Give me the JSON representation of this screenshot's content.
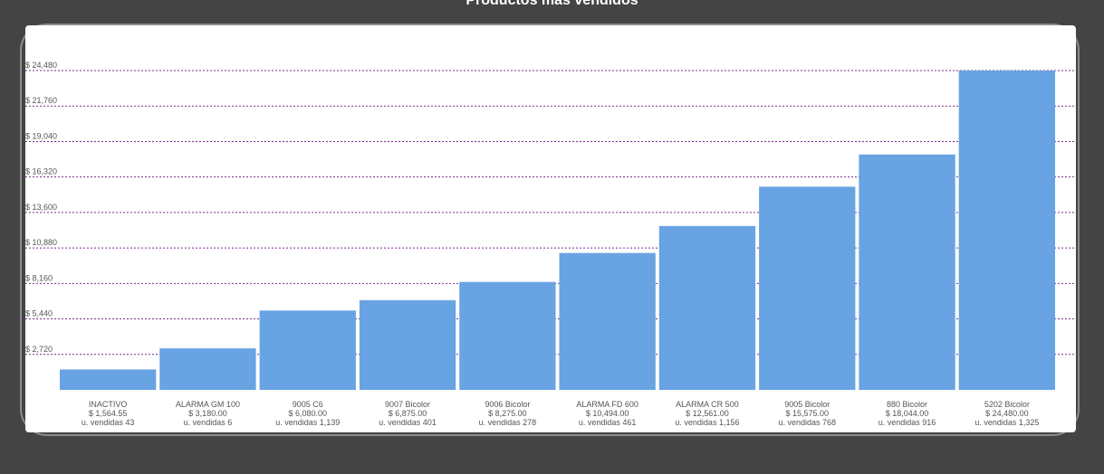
{
  "page": {
    "title": "Productos más vendidos"
  },
  "colors": {
    "background": "#444444",
    "panel": "#ffffff",
    "bar": "#68a3e3",
    "grid": "#7b2d8b",
    "text": "#555555"
  },
  "chart_data": {
    "type": "bar",
    "title": "Productos más vendidos",
    "xlabel": "",
    "ylabel": "",
    "ylim": [
      0,
      24480
    ],
    "grid": true,
    "y_ticks": [
      2720,
      5440,
      8160,
      10880,
      13600,
      16320,
      19040,
      21760,
      24480
    ],
    "y_tick_labels": [
      "$ 2,720",
      "$ 5,440",
      "$ 8,160",
      "$ 10,880",
      "$ 13,600",
      "$ 16,320",
      "$ 19,040",
      "$ 21,760",
      "$ 24,480"
    ],
    "categories": [
      "INACTIVO",
      "ALARMA GM 100",
      "9005 C6",
      "9007 Bicolor",
      "9006 Bicolor",
      "ALARMA FD 600",
      "ALARMA CR 500",
      "9005 Bicolor",
      "880 Bicolor",
      "5202 Bicolor"
    ],
    "values": [
      1564.55,
      3180.0,
      6080.0,
      6875.0,
      8275.0,
      10494.0,
      12561.0,
      15575.0,
      18044.0,
      24480.0
    ],
    "value_labels": [
      "$ 1,564.55",
      "$ 3,180.00",
      "$ 6,080.00",
      "$ 6,875.00",
      "$ 8,275.00",
      "$ 10,494.00",
      "$ 12,561.00",
      "$ 15,575.00",
      "$ 18,044.00",
      "$ 24,480.00"
    ],
    "units_sold": [
      43,
      6,
      1139,
      401,
      278,
      461,
      1156,
      768,
      916,
      1325
    ],
    "units_labels": [
      "u. vendidas 43",
      "u. vendidas 6",
      "u. vendidas 1,139",
      "u. vendidas 401",
      "u. vendidas 278",
      "u. vendidas 461",
      "u. vendidas 1,156",
      "u. vendidas 768",
      "u. vendidas 916",
      "u. vendidas 1,325"
    ]
  }
}
